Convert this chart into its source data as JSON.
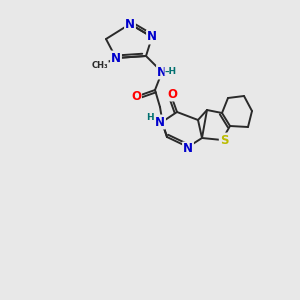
{
  "bg_color": "#e8e8e8",
  "bond_color": "#2a2a2a",
  "atom_colors": {
    "N": "#0000cc",
    "O": "#ff0000",
    "S": "#bbbb00",
    "H": "#007070",
    "C": "#2a2a2a"
  },
  "lw": 1.4,
  "fs": 8.5,
  "fs_small": 7.0
}
